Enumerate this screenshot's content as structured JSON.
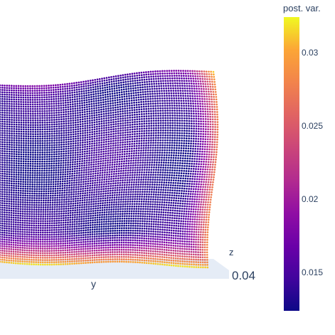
{
  "chart_data": {
    "type": "surface",
    "axes": {
      "x_title": "",
      "y_title": "y",
      "z_title": "z"
    },
    "visible_axis_tick": "0.04",
    "colorbar": {
      "title": "post. var.",
      "ticks": [
        0.015,
        0.02,
        0.025,
        0.03
      ],
      "tick_labels": [
        "0.015",
        "0.02",
        "0.025",
        "0.03"
      ],
      "range": [
        0.0115,
        0.0335
      ]
    },
    "colorscale": "plasma",
    "surface_style": "dense grid of points, low variance in the center rising toward the edges and corners",
    "legend_position": "right"
  }
}
